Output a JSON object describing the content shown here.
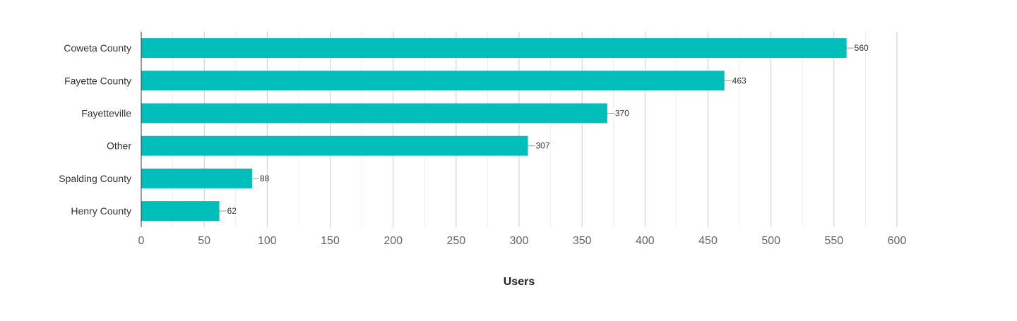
{
  "chart_data": {
    "type": "bar",
    "orientation": "horizontal",
    "title": "",
    "xlabel": "Users",
    "ylabel": "",
    "categories": [
      "Coweta County",
      "Fayette County",
      "Fayetteville",
      "Other",
      "Spalding County",
      "Henry County"
    ],
    "values": [
      560,
      463,
      370,
      307,
      88,
      62
    ],
    "xlim": [
      0,
      600
    ],
    "x_ticks": [
      0,
      50,
      100,
      150,
      200,
      250,
      300,
      350,
      400,
      450,
      500,
      550,
      600
    ],
    "grid": true,
    "minor_grid": true,
    "legend": "none",
    "data_labels": true,
    "colors": {
      "bar": "#00bfbb",
      "major_grid": "#cccccc",
      "minor_grid": "#eeeeee",
      "axis": "#333333"
    }
  }
}
